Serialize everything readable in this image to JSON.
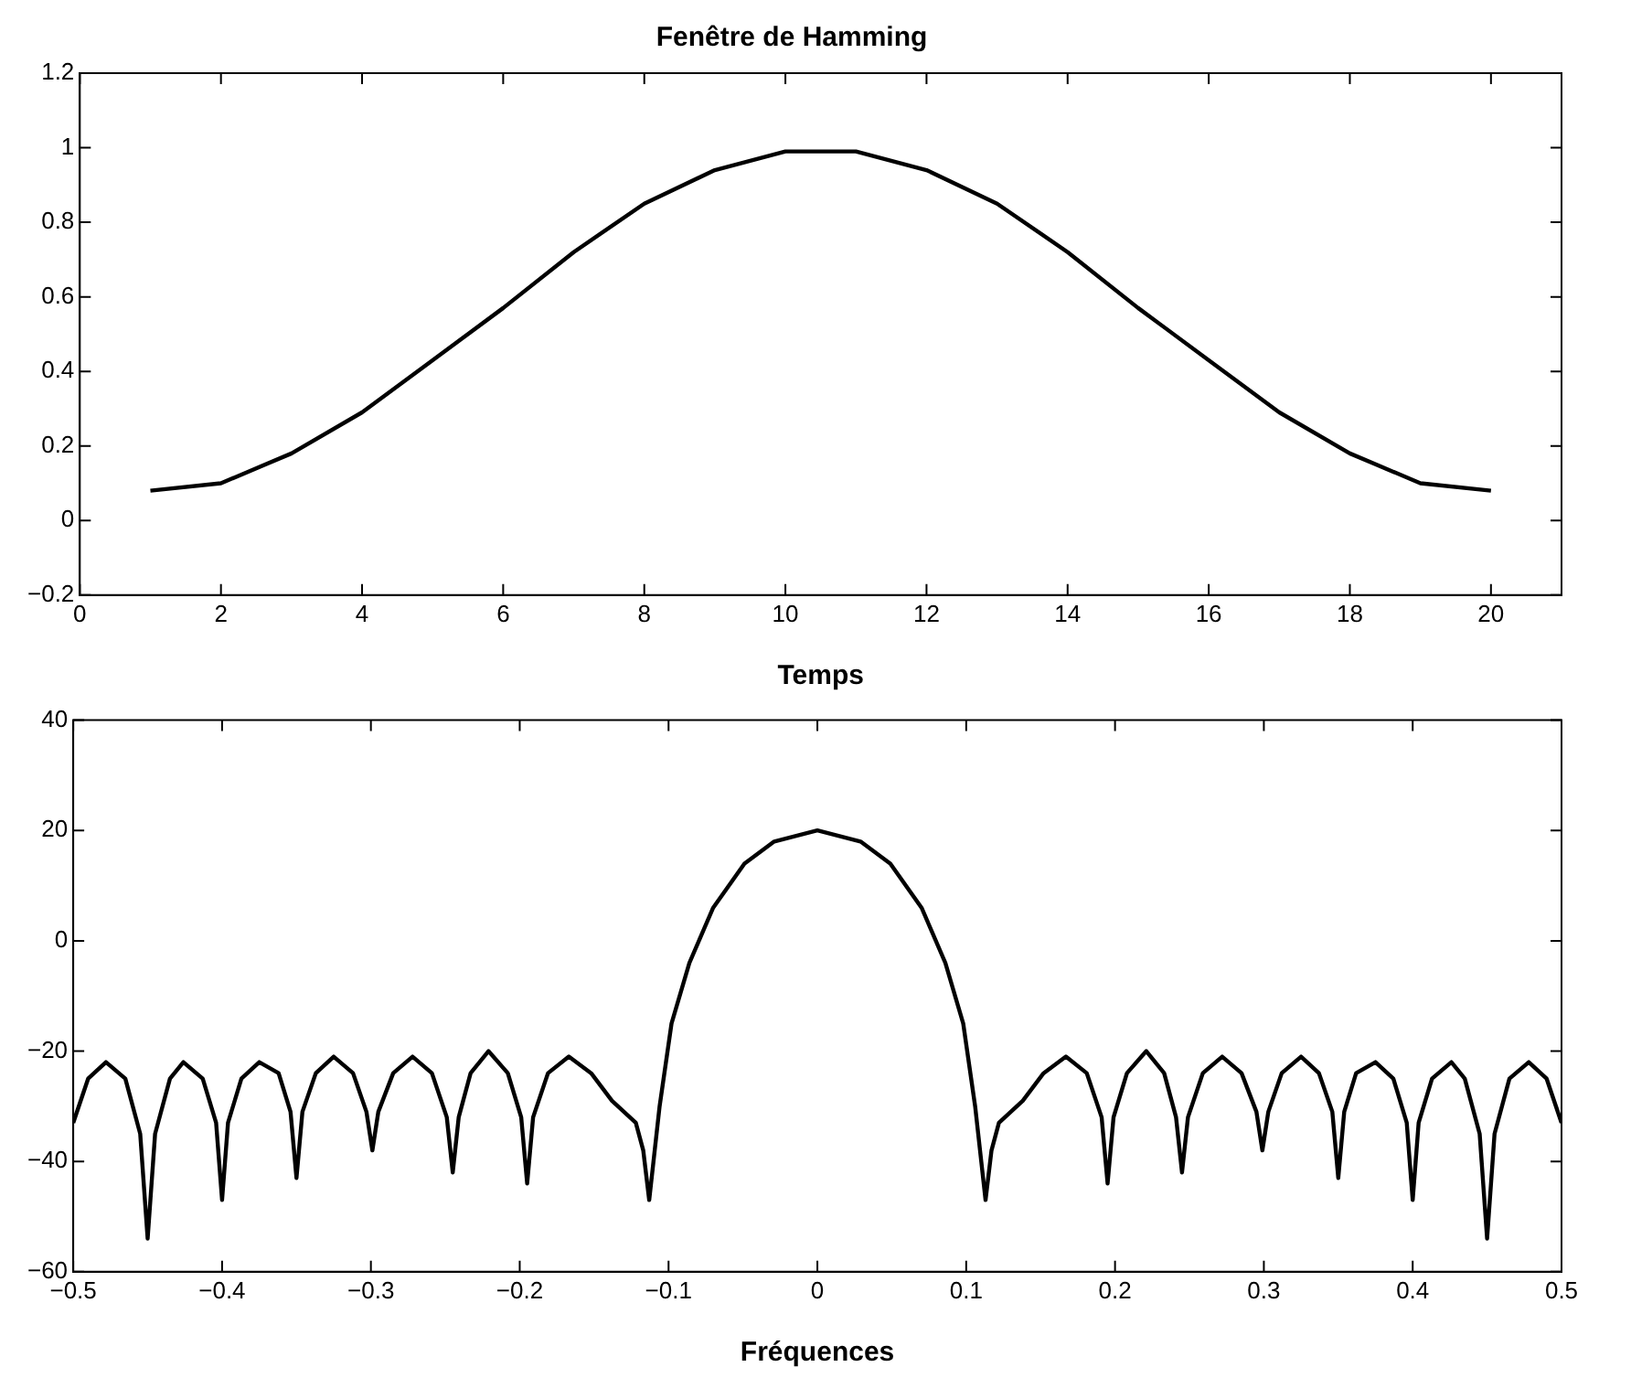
{
  "chart_data": [
    {
      "type": "line",
      "title": "Fenêtre de Hamming",
      "xlabel": "Temps",
      "color": "#000000",
      "marker": "none",
      "grid": false,
      "legend": false,
      "x": [
        1,
        2,
        3,
        4,
        5,
        6,
        7,
        8,
        9,
        10,
        11,
        12,
        13,
        14,
        15,
        16,
        17,
        18,
        19,
        20
      ],
      "values": [
        0.08,
        0.1,
        0.18,
        0.29,
        0.43,
        0.57,
        0.72,
        0.85,
        0.94,
        0.99,
        0.99,
        0.94,
        0.85,
        0.72,
        0.57,
        0.43,
        0.29,
        0.18,
        0.1,
        0.08
      ],
      "xlim": [
        0,
        21
      ],
      "xticks": [
        0,
        2,
        4,
        6,
        8,
        10,
        12,
        14,
        16,
        18,
        20
      ],
      "ylim": [
        -0.2,
        1.2
      ],
      "yticks": [
        {
          "value": -0.2,
          "label": "−0.2"
        },
        0,
        0.2,
        0.4,
        0.6,
        0.8,
        1,
        1.2
      ]
    },
    {
      "type": "line",
      "xlabel": "Fréquences",
      "color": "#000000",
      "marker": "none",
      "grid": false,
      "legend": false,
      "x": [
        -0.5,
        -0.49,
        -0.478,
        -0.465,
        -0.455,
        -0.45,
        -0.445,
        -0.435,
        -0.426,
        -0.413,
        -0.404,
        -0.4,
        -0.396,
        -0.387,
        -0.375,
        -0.362,
        -0.354,
        -0.35,
        -0.346,
        -0.337,
        -0.325,
        -0.312,
        -0.303,
        -0.299,
        -0.295,
        -0.285,
        -0.272,
        -0.259,
        -0.249,
        -0.245,
        -0.241,
        -0.233,
        -0.221,
        -0.208,
        -0.199,
        -0.195,
        -0.191,
        -0.181,
        -0.167,
        -0.152,
        -0.138,
        -0.122,
        -0.117,
        -0.113,
        -0.106,
        -0.098,
        -0.086,
        -0.07,
        -0.049,
        -0.029,
        0,
        0.029,
        0.049,
        0.07,
        0.086,
        0.098,
        0.106,
        0.113,
        0.117,
        0.122,
        0.138,
        0.152,
        0.167,
        0.181,
        0.191,
        0.195,
        0.199,
        0.208,
        0.221,
        0.233,
        0.241,
        0.245,
        0.249,
        0.259,
        0.272,
        0.285,
        0.295,
        0.299,
        0.303,
        0.312,
        0.325,
        0.337,
        0.346,
        0.35,
        0.354,
        0.362,
        0.375,
        0.387,
        0.396,
        0.4,
        0.404,
        0.413,
        0.426,
        0.435,
        0.445,
        0.45,
        0.455,
        0.465,
        0.478,
        0.49,
        0.5
      ],
      "values": [
        -33,
        -25,
        -22,
        -25,
        -35,
        -54,
        -35,
        -25,
        -22,
        -25,
        -33,
        -47,
        -33,
        -25,
        -22,
        -24,
        -31,
        -43,
        -31,
        -24,
        -21,
        -24,
        -31,
        -38,
        -31,
        -24,
        -21,
        -24,
        -32,
        -42,
        -32,
        -24,
        -20,
        -24,
        -32,
        -44,
        -32,
        -24,
        -21,
        -24,
        -29,
        -33,
        -38,
        -47,
        -30,
        -15,
        -4,
        6,
        14,
        18,
        20,
        18,
        14,
        6,
        -4,
        -15,
        -30,
        -47,
        -38,
        -33,
        -29,
        -24,
        -21,
        -24,
        -32,
        -44,
        -32,
        -24,
        -20,
        -24,
        -32,
        -42,
        -32,
        -24,
        -21,
        -24,
        -31,
        -38,
        -31,
        -24,
        -21,
        -24,
        -31,
        -43,
        -31,
        -24,
        -22,
        -25,
        -33,
        -47,
        -33,
        -25,
        -22,
        -25,
        -35,
        -54,
        -35,
        -25,
        -22,
        -25,
        -33
      ],
      "xlim": [
        -0.5,
        0.5
      ],
      "xticks": [
        {
          "value": -0.5,
          "label": "−0.5"
        },
        {
          "value": -0.4,
          "label": "−0.4"
        },
        {
          "value": -0.3,
          "label": "−0.3"
        },
        {
          "value": -0.2,
          "label": "−0.2"
        },
        {
          "value": -0.1,
          "label": "−0.1"
        },
        0,
        0.1,
        0.2,
        0.3,
        0.4,
        0.5
      ],
      "ylim": [
        -60,
        40
      ],
      "yticks": [
        {
          "value": -60,
          "label": "−60"
        },
        {
          "value": -40,
          "label": "−40"
        },
        {
          "value": -20,
          "label": "−20"
        },
        0,
        20,
        40
      ]
    }
  ]
}
